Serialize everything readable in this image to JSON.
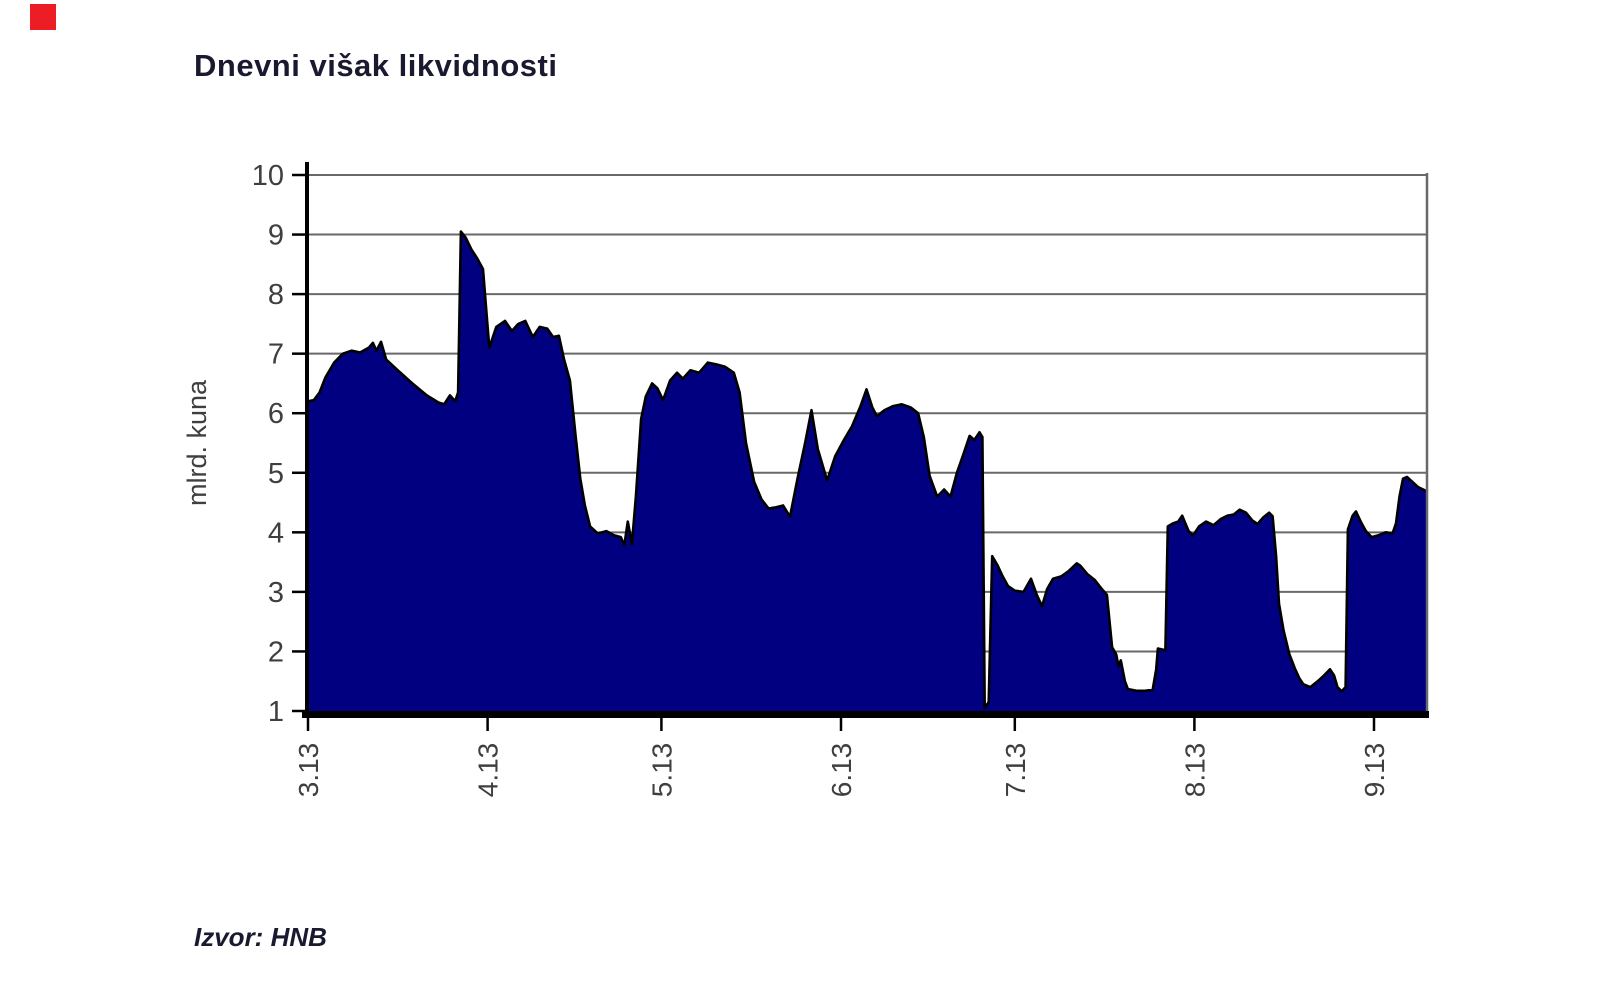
{
  "page": {
    "corner_marker_color": "#ec1d24",
    "background_color": "#ffffff"
  },
  "chart_data": {
    "type": "area",
    "title": "Dnevni višak likvidnosti",
    "source": "Izvor: HNB",
    "xlabel": "",
    "ylabel": "mlrd. kuna",
    "ylim": [
      1,
      10
    ],
    "yticks": [
      "1",
      "2",
      "3",
      "4",
      "5",
      "6",
      "7",
      "8",
      "9",
      "10"
    ],
    "grid": true,
    "legend": "none",
    "x_unit": "days since start of March 2013",
    "xlim": [
      0,
      193.2
    ],
    "xticks": [
      {
        "label": "3.13",
        "day": 0
      },
      {
        "label": "4.13",
        "day": 31
      },
      {
        "label": "5.13",
        "day": 61
      },
      {
        "label": "6.13",
        "day": 92
      },
      {
        "label": "7.13",
        "day": 122
      },
      {
        "label": "8.13",
        "day": 153
      },
      {
        "label": "9.13",
        "day": 184
      }
    ],
    "fill_color": "#000080",
    "line_color": "#000000",
    "grid_color": "#696969",
    "axis_color": "#000000",
    "tick_label_color": "#3f3f3f",
    "points": [
      [
        0,
        6.2
      ],
      [
        1,
        6.22
      ],
      [
        2,
        6.35
      ],
      [
        3,
        6.6
      ],
      [
        4.5,
        6.85
      ],
      [
        6,
        7
      ],
      [
        7.5,
        7.05
      ],
      [
        9,
        7.02
      ],
      [
        10.5,
        7.1
      ],
      [
        11.2,
        7.18
      ],
      [
        11.8,
        7.05
      ],
      [
        12.6,
        7.2
      ],
      [
        13.5,
        6.9
      ],
      [
        15.5,
        6.72
      ],
      [
        18,
        6.5
      ],
      [
        20.5,
        6.3
      ],
      [
        22.5,
        6.18
      ],
      [
        23.5,
        6.15
      ],
      [
        24.5,
        6.3
      ],
      [
        25.4,
        6.2
      ],
      [
        25.9,
        6.35
      ],
      [
        26.4,
        9.05
      ],
      [
        27.2,
        8.95
      ],
      [
        28.2,
        8.75
      ],
      [
        29.2,
        8.6
      ],
      [
        30.2,
        8.42
      ],
      [
        30.8,
        7.7
      ],
      [
        31.3,
        7.1
      ],
      [
        32.5,
        7.45
      ],
      [
        34,
        7.55
      ],
      [
        35.2,
        7.38
      ],
      [
        36.3,
        7.5
      ],
      [
        37.5,
        7.55
      ],
      [
        38.8,
        7.28
      ],
      [
        40,
        7.45
      ],
      [
        41.3,
        7.42
      ],
      [
        42.3,
        7.28
      ],
      [
        43.3,
        7.3
      ],
      [
        44.2,
        6.9
      ],
      [
        45.2,
        6.55
      ],
      [
        46.2,
        5.6
      ],
      [
        47,
        4.9
      ],
      [
        47.8,
        4.45
      ],
      [
        48.7,
        4.1
      ],
      [
        50,
        3.98
      ],
      [
        51.5,
        4.02
      ],
      [
        52.8,
        3.95
      ],
      [
        54,
        3.92
      ],
      [
        54.6,
        3.78
      ],
      [
        55.2,
        4.18
      ],
      [
        55.9,
        3.8
      ],
      [
        56.6,
        4.6
      ],
      [
        57.5,
        5.9
      ],
      [
        58.3,
        6.28
      ],
      [
        59.4,
        6.5
      ],
      [
        60.3,
        6.42
      ],
      [
        61.3,
        6.22
      ],
      [
        62.5,
        6.55
      ],
      [
        63.7,
        6.68
      ],
      [
        64.7,
        6.58
      ],
      [
        66,
        6.72
      ],
      [
        67.5,
        6.68
      ],
      [
        69,
        6.85
      ],
      [
        70.5,
        6.82
      ],
      [
        72,
        6.78
      ],
      [
        73.5,
        6.68
      ],
      [
        74.5,
        6.35
      ],
      [
        75.6,
        5.5
      ],
      [
        77,
        4.85
      ],
      [
        78.3,
        4.55
      ],
      [
        79.5,
        4.4
      ],
      [
        80.8,
        4.42
      ],
      [
        82,
        4.45
      ],
      [
        83.2,
        4.26
      ],
      [
        84.5,
        4.9
      ],
      [
        85.8,
        5.5
      ],
      [
        86.9,
        6.05
      ],
      [
        88,
        5.4
      ],
      [
        89.6,
        4.87
      ],
      [
        91,
        5.28
      ],
      [
        92.5,
        5.55
      ],
      [
        93.9,
        5.78
      ],
      [
        95.3,
        6.1
      ],
      [
        96.4,
        6.4
      ],
      [
        97.4,
        6.1
      ],
      [
        98.2,
        5.95
      ],
      [
        99.5,
        6.05
      ],
      [
        101,
        6.12
      ],
      [
        102.5,
        6.15
      ],
      [
        104,
        6.1
      ],
      [
        105.3,
        6
      ],
      [
        106.3,
        5.6
      ],
      [
        107.3,
        4.95
      ],
      [
        108.6,
        4.6
      ],
      [
        109.8,
        4.72
      ],
      [
        110.9,
        4.6
      ],
      [
        112,
        5
      ],
      [
        113.1,
        5.3
      ],
      [
        114.2,
        5.62
      ],
      [
        115,
        5.55
      ],
      [
        115.9,
        5.68
      ],
      [
        116.4,
        5.6
      ],
      [
        116.8,
        1.05
      ],
      [
        117.5,
        1.15
      ],
      [
        118.1,
        3.6
      ],
      [
        119,
        3.45
      ],
      [
        119.8,
        3.28
      ],
      [
        120.8,
        3.1
      ],
      [
        122,
        3.02
      ],
      [
        123.5,
        3
      ],
      [
        124.8,
        3.22
      ],
      [
        125.8,
        2.95
      ],
      [
        126.7,
        2.76
      ],
      [
        127.6,
        3.05
      ],
      [
        128.6,
        3.22
      ],
      [
        130,
        3.26
      ],
      [
        131.3,
        3.35
      ],
      [
        132.7,
        3.48
      ],
      [
        133.3,
        3.44
      ],
      [
        134.5,
        3.3
      ],
      [
        135.8,
        3.2
      ],
      [
        137,
        3.05
      ],
      [
        137.9,
        2.95
      ],
      [
        138.8,
        2.07
      ],
      [
        139.5,
        1.95
      ],
      [
        139.9,
        1.75
      ],
      [
        140.3,
        1.85
      ],
      [
        141,
        1.5
      ],
      [
        141.5,
        1.37
      ],
      [
        143,
        1.34
      ],
      [
        144.5,
        1.34
      ],
      [
        145.8,
        1.36
      ],
      [
        146.4,
        1.7
      ],
      [
        146.7,
        2.05
      ],
      [
        148,
        2.02
      ],
      [
        148.4,
        4.1
      ],
      [
        149.3,
        4.15
      ],
      [
        150.2,
        4.18
      ],
      [
        150.9,
        4.28
      ],
      [
        152,
        4.02
      ],
      [
        152.8,
        3.95
      ],
      [
        153.8,
        4.1
      ],
      [
        155,
        4.18
      ],
      [
        156.3,
        4.12
      ],
      [
        157.5,
        4.22
      ],
      [
        158.7,
        4.28
      ],
      [
        159.8,
        4.3
      ],
      [
        160.8,
        4.38
      ],
      [
        161.9,
        4.33
      ],
      [
        163,
        4.2
      ],
      [
        163.9,
        4.14
      ],
      [
        164.9,
        4.25
      ],
      [
        165.9,
        4.33
      ],
      [
        166.5,
        4.27
      ],
      [
        167.1,
        3.6
      ],
      [
        167.6,
        2.8
      ],
      [
        168.4,
        2.35
      ],
      [
        169.4,
        1.95
      ],
      [
        170.4,
        1.7
      ],
      [
        171.1,
        1.55
      ],
      [
        171.8,
        1.45
      ],
      [
        173,
        1.4
      ],
      [
        174.3,
        1.5
      ],
      [
        175.4,
        1.6
      ],
      [
        176.4,
        1.7
      ],
      [
        177.1,
        1.6
      ],
      [
        177.7,
        1.4
      ],
      [
        178.4,
        1.33
      ],
      [
        179.1,
        1.4
      ],
      [
        179.5,
        4.05
      ],
      [
        180.3,
        4.28
      ],
      [
        180.9,
        4.35
      ],
      [
        181.7,
        4.18
      ],
      [
        182.6,
        4.02
      ],
      [
        183.6,
        3.92
      ],
      [
        184.8,
        3.95
      ],
      [
        186,
        4
      ],
      [
        187.2,
        3.98
      ],
      [
        187.8,
        4.15
      ],
      [
        188.4,
        4.6
      ],
      [
        189,
        4.9
      ],
      [
        189.7,
        4.93
      ],
      [
        190.6,
        4.85
      ],
      [
        191.6,
        4.76
      ],
      [
        192.5,
        4.72
      ],
      [
        193.2,
        4.68
      ]
    ]
  }
}
